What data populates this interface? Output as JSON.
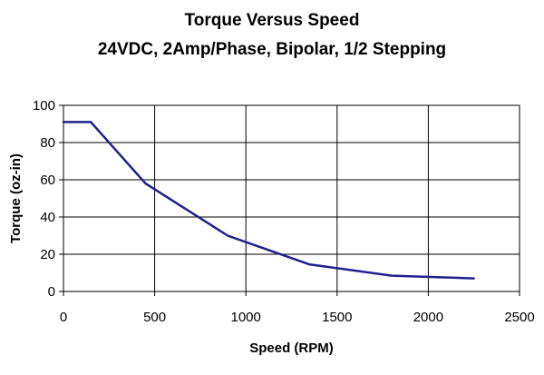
{
  "chart_data": {
    "type": "line",
    "title": "Torque Versus Speed",
    "subtitle": "24VDC, 2Amp/Phase, Bipolar, 1/2 Stepping",
    "xlabel": "Speed (RPM)",
    "ylabel": "Torque (oz-in)",
    "xlim": [
      0,
      2500
    ],
    "ylim": [
      0,
      100
    ],
    "xticks": [
      0,
      500,
      1000,
      1500,
      2000,
      2500
    ],
    "yticks": [
      0,
      20,
      40,
      60,
      80,
      100
    ],
    "grid": true,
    "legend": "none",
    "series": [
      {
        "color": "#1f1f8f",
        "x": [
          0,
          150,
          450,
          900,
          1350,
          1800,
          2250
        ],
        "y": [
          91,
          91,
          58,
          30,
          14.5,
          8.5,
          7
        ]
      }
    ]
  }
}
